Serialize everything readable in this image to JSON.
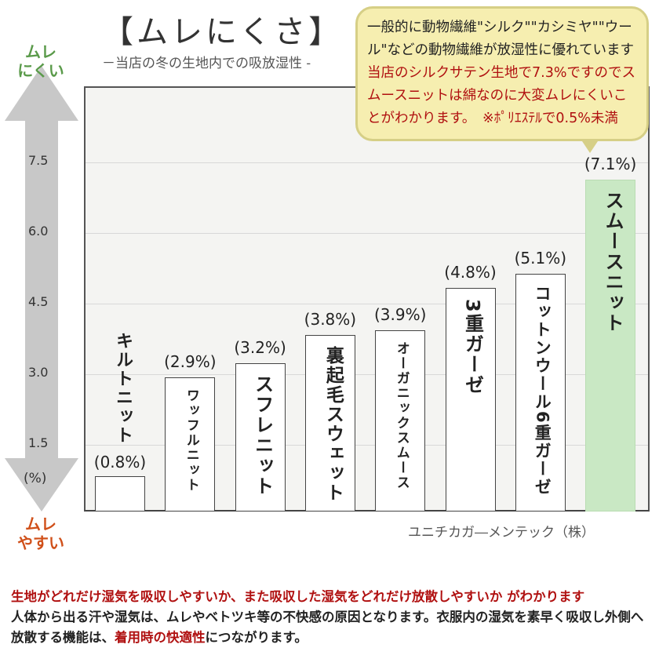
{
  "title": "【ムレにくさ】",
  "subtitle": "－当店の冬の生地内での吸放湿性 -",
  "axis": {
    "top_label": [
      "ムレ",
      "にくい"
    ],
    "bottom_label": [
      "ムレ",
      "やすい"
    ],
    "unit": "(%)",
    "top_color": "#5a9a4a",
    "bottom_color": "#d0501a"
  },
  "callout": {
    "normal": "一般的に動物繊維\"シルク\"\"カシミヤ\"\"ウール\"などの動物繊維が放湿性に優れています ",
    "highlight": "当店のシルクサテン生地で7.3%ですのでスムースニットは綿なのに大変ムレにくいことがわかります。",
    "note": "　※ﾎﾟﾘｴｽﾃﾙで0.5%未満"
  },
  "maker": "ユニチカガ―メンテック（株）",
  "bottom_text": {
    "line1": "生地がどれだけ湿気を吸収しやすいか、また吸収した湿気をどれだけ放散しやすいか がわかります",
    "line2a": "人体から出る汗や湿気は、ムレやベトツキ等の不快感の原因となります。衣服内の湿気を素早く吸収し外側へ放散する機能は、",
    "line2b": "着用時の快適性",
    "line2c": "につながります。"
  },
  "chart_data": {
    "type": "bar",
    "categories": [
      "キルトニット",
      "ワッフルニット",
      "スフレニット",
      "裏起毛スウェット",
      "オーガニックスムース",
      "3重ガーゼ",
      "コットンウール6重ガーゼ",
      "スムースニット"
    ],
    "values": [
      0.8,
      2.9,
      3.2,
      3.8,
      3.9,
      4.8,
      5.1,
      7.1
    ],
    "value_labels": [
      "(0.8%)",
      "(2.9%)",
      "(3.2%)",
      "(3.8%)",
      "(3.9%)",
      "(4.8%)",
      "(5.1%)",
      "(7.1%)"
    ],
    "yticks": [
      "1.5",
      "3.0",
      "4.5",
      "6.0",
      "7.5"
    ],
    "ylabel": "(%)",
    "ylim": [
      0,
      8.5
    ],
    "grid": true,
    "highlight_index": 7,
    "highlight_color": "#c9e8c4"
  }
}
